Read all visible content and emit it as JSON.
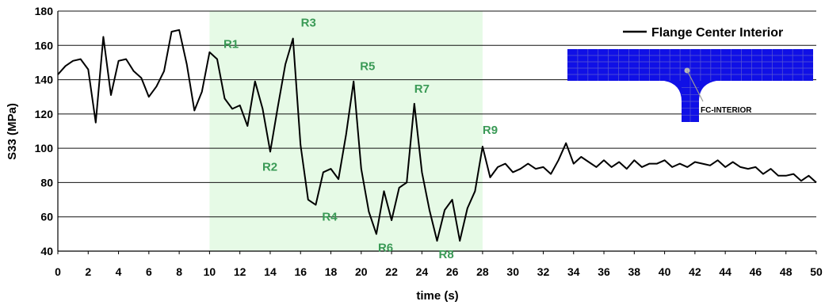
{
  "chart_data": {
    "type": "line",
    "xlabel": "time (s)",
    "ylabel": "S33 (MPa)",
    "xlim": [
      0,
      50
    ],
    "ylim": [
      40,
      180
    ],
    "x_ticks": [
      0,
      2,
      4,
      6,
      8,
      10,
      12,
      14,
      16,
      18,
      20,
      22,
      24,
      26,
      28,
      30,
      32,
      34,
      36,
      38,
      40,
      42,
      44,
      46,
      48,
      50
    ],
    "y_ticks": [
      40,
      60,
      80,
      100,
      120,
      140,
      160,
      180
    ],
    "grid": "horizontal",
    "legend_position": "top-right",
    "highlight_range": [
      10,
      28
    ],
    "colors": {
      "line": "#000000",
      "highlight": "#e6fae6",
      "annotation": "#3a9a56",
      "inset_mesh": "#1010e6",
      "inset_grid": "#5a5ad0"
    },
    "series": [
      {
        "name": "Flange Center Interior",
        "x": [
          0,
          0.5,
          1,
          1.5,
          2,
          2.5,
          3,
          3.5,
          4,
          4.5,
          5,
          5.5,
          6,
          6.5,
          7,
          7.5,
          8,
          8.5,
          9,
          9.5,
          10,
          10.5,
          11,
          11.5,
          12,
          12.5,
          13,
          13.5,
          14,
          14.5,
          15,
          15.5,
          16,
          16.5,
          17,
          17.5,
          18,
          18.5,
          19,
          19.5,
          20,
          20.5,
          21,
          21.5,
          22,
          22.5,
          23,
          23.5,
          24,
          24.5,
          25,
          25.5,
          26,
          26.5,
          27,
          27.5,
          28,
          28.5,
          29,
          29.5,
          30,
          30.5,
          31,
          31.5,
          32,
          32.5,
          33,
          33.5,
          34,
          34.5,
          35,
          35.5,
          36,
          36.5,
          37,
          37.5,
          38,
          38.5,
          39,
          39.5,
          40,
          40.5,
          41,
          41.5,
          42,
          42.5,
          43,
          43.5,
          44,
          44.5,
          45,
          45.5,
          46,
          46.5,
          47,
          47.5,
          48,
          48.5,
          49,
          49.5,
          50
        ],
        "y": [
          143,
          148,
          151,
          152,
          146,
          115,
          165,
          131,
          151,
          152,
          145,
          141,
          130,
          136,
          145,
          168,
          169,
          149,
          122,
          133,
          156,
          152,
          129,
          123,
          125,
          113,
          139,
          123,
          98,
          124,
          149,
          164,
          102,
          70,
          67,
          86,
          88,
          82,
          108,
          139,
          88,
          63,
          50,
          75,
          58,
          77,
          80,
          126,
          86,
          64,
          46,
          64,
          70,
          46,
          65,
          75,
          101,
          83,
          89,
          91,
          86,
          88,
          91,
          88,
          89,
          85,
          93,
          103,
          91,
          95,
          92,
          89,
          93,
          89,
          92,
          88,
          93,
          89,
          91,
          91,
          93,
          89,
          91,
          89,
          92,
          91,
          90,
          93,
          89,
          92,
          89,
          88,
          89,
          85,
          88,
          84,
          84,
          85,
          81,
          84,
          80
        ]
      }
    ],
    "annotations": [
      {
        "label": "R1",
        "x": 10.5,
        "y": 152
      },
      {
        "label": "R2",
        "x": 14,
        "y": 98
      },
      {
        "label": "R3",
        "x": 15.5,
        "y": 164
      },
      {
        "label": "R4",
        "x": 17,
        "y": 67
      },
      {
        "label": "R5",
        "x": 19.5,
        "y": 139
      },
      {
        "label": "R6",
        "x": 21,
        "y": 50
      },
      {
        "label": "R7",
        "x": 23.5,
        "y": 126
      },
      {
        "label": "R8",
        "x": 25,
        "y": 46
      },
      {
        "label": "R9",
        "x": 28,
        "y": 101
      }
    ],
    "inset": {
      "label": "FC-INTERIOR"
    }
  }
}
